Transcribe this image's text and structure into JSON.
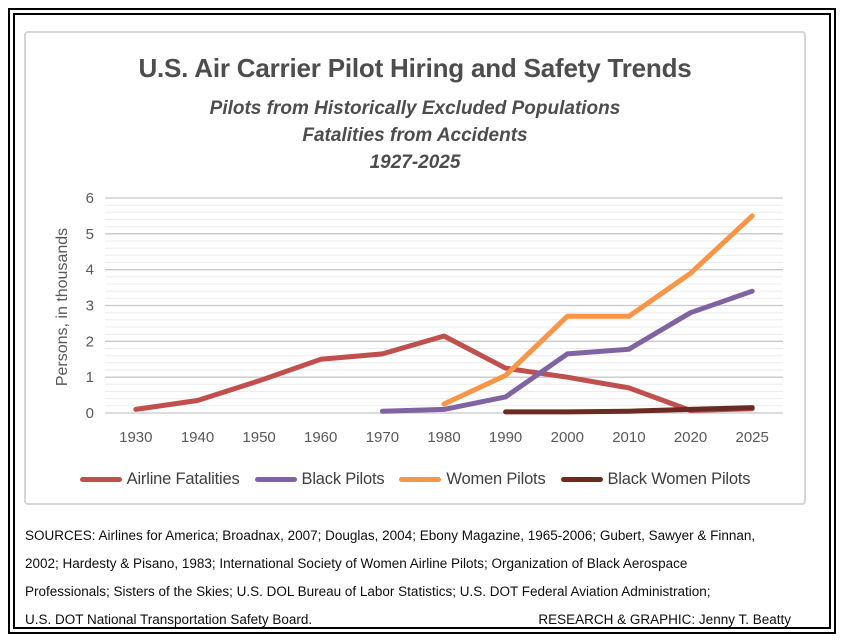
{
  "chart_data": {
    "type": "line",
    "title": "U.S. Air Carrier Pilot Hiring and Safety Trends",
    "subtitle_lines": [
      "Pilots from Historically Excluded Populations",
      "Fatalities from Accidents",
      "1927-2025"
    ],
    "categories": [
      "1930",
      "1940",
      "1950",
      "1960",
      "1970",
      "1980",
      "1990",
      "2000",
      "2010",
      "2020",
      "2025"
    ],
    "series": [
      {
        "name": "Airline Fatalities",
        "color": "#c0504d",
        "values": [
          0.1,
          0.35,
          0.9,
          1.5,
          1.65,
          2.15,
          1.25,
          1.0,
          0.7,
          0.07,
          0.12
        ]
      },
      {
        "name": "Black Pilots",
        "color": "#8064a2",
        "values": [
          null,
          null,
          null,
          null,
          0.05,
          0.1,
          0.45,
          1.65,
          1.78,
          2.8,
          3.4
        ]
      },
      {
        "name": "Women Pilots",
        "color": "#f79646",
        "values": [
          null,
          null,
          null,
          null,
          null,
          0.25,
          1.05,
          2.7,
          2.7,
          3.9,
          5.5
        ]
      },
      {
        "name": "Black Women Pilots",
        "color": "#6b2b23",
        "values": [
          null,
          null,
          null,
          null,
          null,
          null,
          0.03,
          0.03,
          0.05,
          0.1,
          0.15
        ]
      }
    ],
    "xlabel": "",
    "ylabel": "Persons, in thousands",
    "ylim": [
      0,
      6
    ],
    "y_major_step": 1,
    "y_minor_step": 0.2,
    "grid": true,
    "legend_position": "bottom",
    "axis_text_color": "#595959",
    "major_grid_color": "#c8c8c8",
    "minor_grid_color": "#ececec"
  },
  "sources": {
    "lines": [
      "SOURCES: Airlines for America; Broadnax, 2007; Douglas, 2004; Ebony Magazine, 1965-2006; Gubert, Sawyer & Finnan,",
      "2002; Hardesty & Pisano, 1983; International Society of Women Airline Pilots; Organization of Black Aerospace",
      "Professionals; Sisters of the Skies; U.S. DOL Bureau of Labor Statistics; U.S. DOT Federal Aviation Administration;"
    ],
    "last_line": "U.S. DOT National Transportation Safety Board.",
    "credit": "RESEARCH & GRAPHIC: Jenny T. Beatty"
  }
}
